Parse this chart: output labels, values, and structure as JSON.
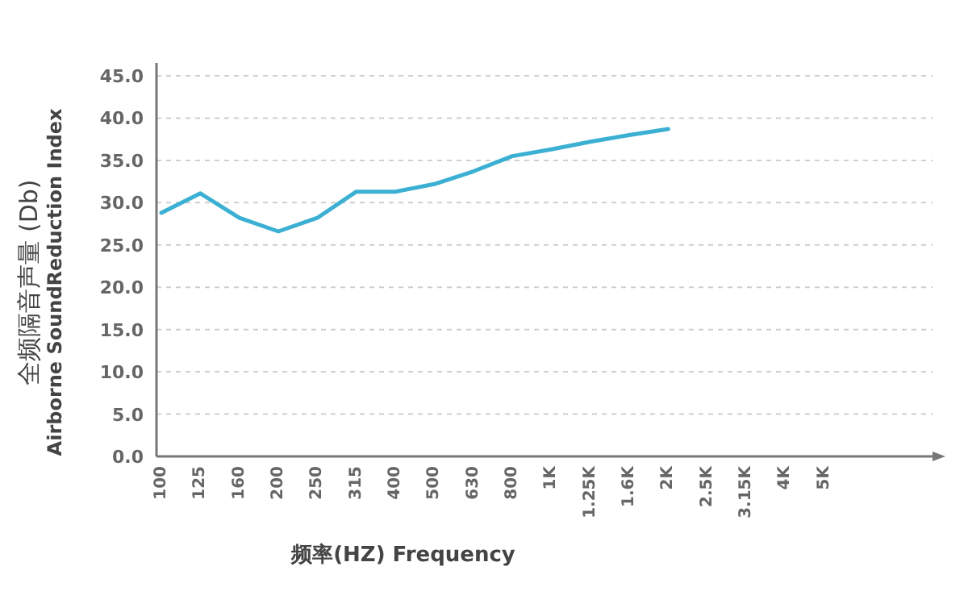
{
  "chart_data": {
    "type": "line",
    "ylabel": "全频隔音声量 (Db)\nAirborne SoundReduction Index",
    "xlabel": "频率(HZ) Frequency",
    "categories": [
      "100",
      "125",
      "160",
      "200",
      "250",
      "315",
      "400",
      "500",
      "630",
      "800",
      "1K",
      "1.25K",
      "1.6K",
      "2K",
      "2.5K",
      "3.15K",
      "4K",
      "5K"
    ],
    "series": [
      {
        "color": "#3bb0d3",
        "values": [
          28.8,
          31.1,
          28.2,
          26.6,
          28.2,
          31.3,
          31.3,
          32.2,
          33.7,
          35.5,
          36.3,
          37.2,
          38.0,
          38.7,
          null,
          null,
          null,
          null
        ]
      }
    ],
    "ylim": [
      0,
      45
    ],
    "yticks": [
      {
        "value": 0,
        "label": "0.0"
      },
      {
        "value": 5,
        "label": "5.0"
      },
      {
        "value": 10,
        "label": "10.0"
      },
      {
        "value": 15,
        "label": "15.0"
      },
      {
        "value": 20,
        "label": "20.0"
      },
      {
        "value": 25,
        "label": "25.0"
      },
      {
        "value": 30,
        "label": "30.0"
      },
      {
        "value": 35,
        "label": "35.0"
      },
      {
        "value": 40,
        "label": "40.0"
      },
      {
        "value": 45,
        "label": "45.0"
      }
    ],
    "grid": "y",
    "line_style": "solid",
    "marker": "none"
  }
}
